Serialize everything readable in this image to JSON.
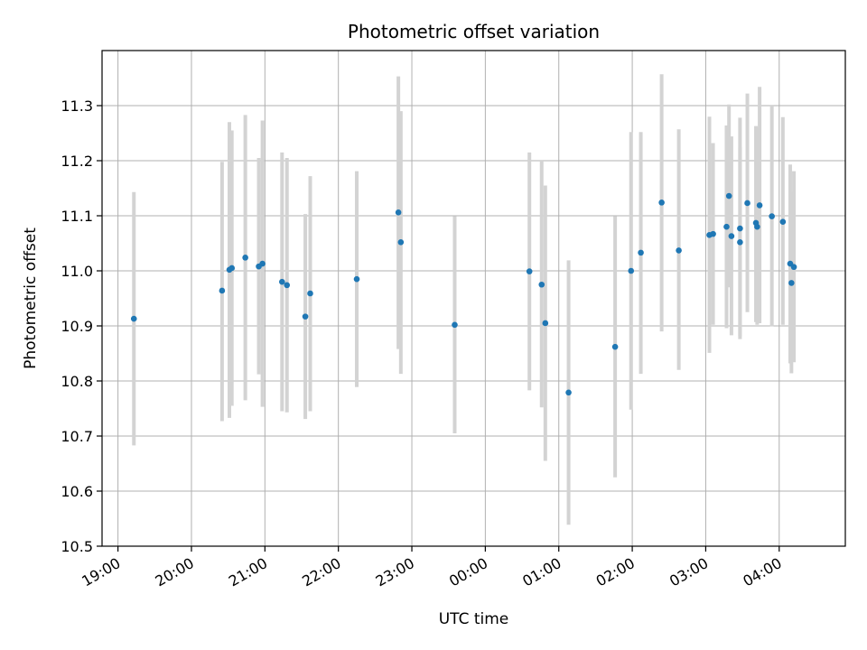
{
  "chart_data": {
    "type": "scatter",
    "title": "Photometric offset variation",
    "xlabel": "UTC time",
    "ylabel": "Photometric offset",
    "x_unit": "UTC time (HH:MM)",
    "xlim": [
      "18:47",
      "04:54"
    ],
    "ylim": [
      10.5,
      11.4
    ],
    "x_ticks": [
      "19:00",
      "20:00",
      "21:00",
      "22:00",
      "23:00",
      "00:00",
      "01:00",
      "02:00",
      "03:00",
      "04:00"
    ],
    "y_ticks": [
      "10.5",
      "10.6",
      "10.7",
      "10.8",
      "10.9",
      "11.0",
      "11.1",
      "11.2",
      "11.3"
    ],
    "grid": true,
    "point_color": "#1f77b4",
    "errorbar_color": "#d3d3d3",
    "points": [
      {
        "x": "19:13",
        "y": 10.913,
        "ylo": 10.683,
        "yhi": 11.143
      },
      {
        "x": "20:25",
        "y": 10.964,
        "ylo": 10.727,
        "yhi": 11.198
      },
      {
        "x": "20:31",
        "y": 11.002,
        "ylo": 10.733,
        "yhi": 11.27
      },
      {
        "x": "20:33",
        "y": 11.005,
        "ylo": 10.755,
        "yhi": 11.255
      },
      {
        "x": "20:44",
        "y": 11.024,
        "ylo": 10.765,
        "yhi": 11.283
      },
      {
        "x": "20:55",
        "y": 11.008,
        "ylo": 10.812,
        "yhi": 11.205
      },
      {
        "x": "20:58",
        "y": 11.013,
        "ylo": 10.753,
        "yhi": 11.273
      },
      {
        "x": "21:14",
        "y": 10.98,
        "ylo": 10.745,
        "yhi": 11.215
      },
      {
        "x": "21:18",
        "y": 10.974,
        "ylo": 10.743,
        "yhi": 11.205
      },
      {
        "x": "21:33",
        "y": 10.917,
        "ylo": 10.731,
        "yhi": 11.103
      },
      {
        "x": "21:37",
        "y": 10.959,
        "ylo": 10.745,
        "yhi": 11.172
      },
      {
        "x": "22:15",
        "y": 10.985,
        "ylo": 10.789,
        "yhi": 11.181
      },
      {
        "x": "22:49",
        "y": 11.106,
        "ylo": 10.858,
        "yhi": 11.353
      },
      {
        "x": "22:51",
        "y": 11.052,
        "ylo": 10.813,
        "yhi": 11.29
      },
      {
        "x": "23:35",
        "y": 10.902,
        "ylo": 10.705,
        "yhi": 11.099
      },
      {
        "x": "00:36",
        "y": 10.999,
        "ylo": 10.783,
        "yhi": 11.215
      },
      {
        "x": "00:46",
        "y": 10.975,
        "ylo": 10.752,
        "yhi": 11.2
      },
      {
        "x": "00:49",
        "y": 10.905,
        "ylo": 10.655,
        "yhi": 11.155
      },
      {
        "x": "01:08",
        "y": 10.779,
        "ylo": 10.539,
        "yhi": 11.019
      },
      {
        "x": "01:46",
        "y": 10.862,
        "ylo": 10.625,
        "yhi": 11.099
      },
      {
        "x": "01:59",
        "y": 11.0,
        "ylo": 10.748,
        "yhi": 11.252
      },
      {
        "x": "02:07",
        "y": 11.033,
        "ylo": 10.813,
        "yhi": 11.252
      },
      {
        "x": "02:24",
        "y": 11.124,
        "ylo": 10.89,
        "yhi": 11.357
      },
      {
        "x": "02:38",
        "y": 11.037,
        "ylo": 10.82,
        "yhi": 11.257
      },
      {
        "x": "03:03",
        "y": 11.065,
        "ylo": 10.851,
        "yhi": 11.28
      },
      {
        "x": "03:06",
        "y": 11.067,
        "ylo": 10.902,
        "yhi": 11.232
      },
      {
        "x": "03:17",
        "y": 11.08,
        "ylo": 10.896,
        "yhi": 11.264
      },
      {
        "x": "03:19",
        "y": 11.136,
        "ylo": 10.97,
        "yhi": 11.302
      },
      {
        "x": "03:21",
        "y": 11.063,
        "ylo": 10.883,
        "yhi": 11.244
      },
      {
        "x": "03:28",
        "y": 11.077,
        "ylo": 10.876,
        "yhi": 11.278
      },
      {
        "x": "03:28",
        "y": 11.052,
        "ylo": 10.881,
        "yhi": 11.224
      },
      {
        "x": "03:34",
        "y": 11.123,
        "ylo": 10.925,
        "yhi": 11.322
      },
      {
        "x": "03:41",
        "y": 11.087,
        "ylo": 10.907,
        "yhi": 11.263
      },
      {
        "x": "03:42",
        "y": 11.08,
        "ylo": 10.902,
        "yhi": 11.261
      },
      {
        "x": "03:44",
        "y": 11.119,
        "ylo": 10.905,
        "yhi": 11.334
      },
      {
        "x": "03:54",
        "y": 11.099,
        "ylo": 10.899,
        "yhi": 11.3
      },
      {
        "x": "04:03",
        "y": 11.089,
        "ylo": 10.902,
        "yhi": 11.279
      },
      {
        "x": "04:09",
        "y": 11.013,
        "ylo": 10.832,
        "yhi": 11.193
      },
      {
        "x": "04:10",
        "y": 10.978,
        "ylo": 10.814,
        "yhi": 11.143
      },
      {
        "x": "04:12",
        "y": 11.007,
        "ylo": 10.834,
        "yhi": 11.181
      }
    ]
  }
}
